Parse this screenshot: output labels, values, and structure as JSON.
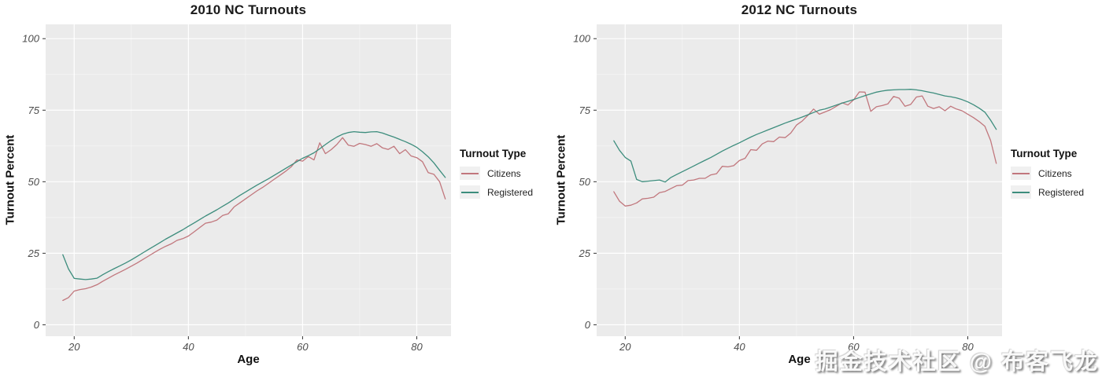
{
  "colors": {
    "citizens": "#C1777D",
    "registered": "#3D8D7D",
    "panel_bg": "#EBEBEB",
    "grid_major": "#FFFFFF",
    "axis_tick": "#333333",
    "tick_text": "#4D4D4D"
  },
  "legend": {
    "title": "Turnout Type",
    "items": [
      {
        "label": "Citizens",
        "color_key": "citizens"
      },
      {
        "label": "Registered",
        "color_key": "registered"
      }
    ]
  },
  "watermark": {
    "text": "掘金技术社区 @ 布客飞龙"
  },
  "chart_data": [
    {
      "type": "line",
      "title": "2010 NC Turnouts",
      "xlabel": "Age",
      "ylabel": "Turnout Percent",
      "legend_title": "Turnout Type",
      "legend_position": "right",
      "grid": true,
      "xlim": [
        15,
        86
      ],
      "ylim": [
        -4,
        105
      ],
      "xticks": [
        20,
        40,
        60,
        80
      ],
      "yticks": [
        0,
        25,
        50,
        75,
        100
      ],
      "xticks_minor": [
        30,
        50,
        70
      ],
      "yticks_minor": [
        12.5,
        37.5,
        62.5,
        87.5
      ],
      "x": [
        18,
        19,
        20,
        21,
        22,
        23,
        24,
        25,
        26,
        27,
        28,
        29,
        30,
        31,
        32,
        33,
        34,
        35,
        36,
        37,
        38,
        39,
        40,
        41,
        42,
        43,
        44,
        45,
        46,
        47,
        48,
        49,
        50,
        51,
        52,
        53,
        54,
        55,
        56,
        57,
        58,
        59,
        60,
        61,
        62,
        63,
        64,
        65,
        66,
        67,
        68,
        69,
        70,
        71,
        72,
        73,
        74,
        75,
        76,
        77,
        78,
        79,
        80,
        81,
        82,
        83,
        84,
        85
      ],
      "series": [
        {
          "name": "Citizens",
          "color_key": "citizens",
          "values": [
            8.5,
            9.5,
            11.8,
            12.3,
            12.6,
            13.2,
            14.0,
            15.2,
            16.3,
            17.4,
            18.4,
            19.4,
            20.5,
            21.6,
            22.8,
            24.0,
            25.2,
            26.4,
            27.4,
            28.3,
            29.5,
            30.1,
            31.0,
            32.5,
            34.0,
            35.5,
            35.9,
            36.6,
            38.2,
            38.8,
            41.2,
            42.6,
            44.0,
            45.4,
            46.8,
            48.0,
            49.4,
            50.8,
            52.2,
            53.6,
            55.2,
            57.6,
            57.2,
            58.8,
            57.6,
            63.6,
            59.8,
            61.2,
            63.0,
            65.4,
            62.8,
            62.4,
            63.4,
            63.0,
            62.4,
            63.3,
            61.8,
            61.3,
            62.4,
            59.8,
            61.2,
            59.0,
            58.4,
            57.0,
            53.2,
            52.6,
            50.0,
            44.0
          ]
        },
        {
          "name": "Registered",
          "color_key": "registered",
          "values": [
            24.5,
            19.5,
            16.2,
            16.0,
            15.8,
            16.0,
            16.3,
            17.5,
            18.6,
            19.6,
            20.6,
            21.6,
            22.7,
            23.9,
            25.1,
            26.3,
            27.5,
            28.7,
            29.9,
            31.0,
            32.1,
            33.2,
            34.4,
            35.6,
            36.8,
            38.0,
            39.1,
            40.2,
            41.4,
            42.6,
            43.9,
            45.2,
            46.4,
            47.6,
            48.8,
            49.9,
            51.0,
            52.2,
            53.4,
            54.6,
            55.8,
            57.0,
            58.2,
            59.1,
            60.1,
            61.5,
            63.0,
            64.4,
            65.6,
            66.6,
            67.2,
            67.5,
            67.3,
            67.2,
            67.4,
            67.5,
            67.0,
            66.3,
            65.6,
            64.8,
            64.0,
            63.1,
            62.0,
            60.5,
            58.7,
            56.6,
            54.0,
            51.5
          ]
        }
      ]
    },
    {
      "type": "line",
      "title": "2012 NC Turnouts",
      "xlabel": "Age",
      "ylabel": "Turnout Percent",
      "legend_title": "Turnout Type",
      "legend_position": "right",
      "grid": true,
      "xlim": [
        15,
        86
      ],
      "ylim": [
        -4,
        105
      ],
      "xticks": [
        20,
        40,
        60,
        80
      ],
      "yticks": [
        0,
        25,
        50,
        75,
        100
      ],
      "xticks_minor": [
        30,
        50,
        70
      ],
      "yticks_minor": [
        12.5,
        37.5,
        62.5,
        87.5
      ],
      "x": [
        18,
        19,
        20,
        21,
        22,
        23,
        24,
        25,
        26,
        27,
        28,
        29,
        30,
        31,
        32,
        33,
        34,
        35,
        36,
        37,
        38,
        39,
        40,
        41,
        42,
        43,
        44,
        45,
        46,
        47,
        48,
        49,
        50,
        51,
        52,
        53,
        54,
        55,
        56,
        57,
        58,
        59,
        60,
        61,
        62,
        63,
        64,
        65,
        66,
        67,
        68,
        69,
        70,
        71,
        72,
        73,
        74,
        75,
        76,
        77,
        78,
        79,
        80,
        81,
        82,
        83,
        84,
        85
      ],
      "series": [
        {
          "name": "Citizens",
          "color_key": "citizens",
          "values": [
            46.5,
            43.2,
            41.5,
            41.8,
            42.6,
            44.0,
            44.2,
            44.6,
            46.2,
            46.6,
            47.6,
            48.6,
            48.8,
            50.4,
            50.6,
            51.2,
            51.2,
            52.4,
            52.8,
            55.4,
            55.2,
            55.6,
            57.4,
            58.2,
            61.2,
            61.0,
            63.2,
            64.2,
            64.0,
            65.6,
            65.4,
            67.0,
            69.8,
            71.2,
            73.2,
            75.4,
            73.6,
            74.4,
            75.2,
            76.4,
            77.6,
            76.8,
            78.6,
            81.4,
            81.3,
            74.6,
            76.2,
            76.6,
            77.2,
            79.8,
            79.2,
            76.4,
            77.0,
            79.6,
            80.0,
            76.4,
            75.6,
            76.2,
            74.8,
            76.4,
            75.4,
            74.8,
            73.6,
            72.4,
            71.0,
            69.4,
            64.4,
            56.4
          ]
        },
        {
          "name": "Registered",
          "color_key": "registered",
          "values": [
            64.3,
            61.0,
            58.5,
            57.2,
            50.8,
            50.0,
            50.2,
            50.4,
            50.6,
            49.9,
            51.5,
            52.5,
            53.5,
            54.5,
            55.5,
            56.5,
            57.5,
            58.5,
            59.6,
            60.7,
            61.7,
            62.7,
            63.6,
            64.6,
            65.6,
            66.5,
            67.3,
            68.1,
            68.9,
            69.7,
            70.5,
            71.2,
            71.9,
            72.6,
            73.4,
            74.2,
            75.0,
            75.4,
            76.1,
            76.8,
            77.5,
            78.1,
            78.7,
            79.4,
            80.1,
            80.7,
            81.3,
            81.7,
            82.0,
            82.1,
            82.2,
            82.2,
            82.3,
            82.1,
            81.8,
            81.4,
            81.0,
            80.5,
            80.0,
            79.7,
            79.3,
            78.7,
            77.9,
            76.9,
            75.7,
            74.3,
            71.5,
            68.3
          ]
        }
      ]
    }
  ]
}
